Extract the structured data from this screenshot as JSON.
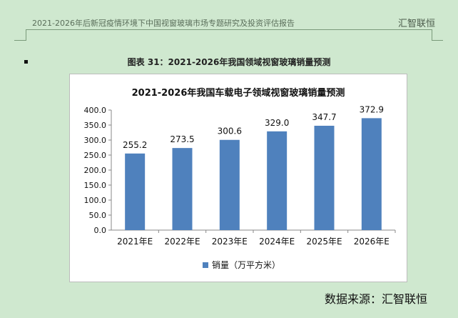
{
  "header": {
    "left_text": "2021-2026年后新冠疫情环境下中国视窗玻璃市场专题研究及投资评估报告",
    "right_text": "汇智联恒"
  },
  "figure_caption": "图表  31：2021-2026年我国领域视窗玻璃销量预测",
  "source_text": "数据来源：汇智联恒",
  "chart_data": {
    "type": "bar",
    "title": "2021-2026年我国车载电子领域视窗玻璃销量预测",
    "categories": [
      "2021年E",
      "2022年E",
      "2023年E",
      "2024年E",
      "2025年E",
      "2026年E"
    ],
    "series": [
      {
        "name": "销量（万平方米）",
        "values": [
          255.2,
          273.5,
          300.6,
          329.0,
          347.7,
          372.9
        ]
      }
    ],
    "value_labels": [
      "255.2",
      "273.5",
      "300.6",
      "329.0",
      "347.7",
      "372.9"
    ],
    "yticks": [
      "0.0",
      "50.0",
      "100.0",
      "150.0",
      "200.0",
      "250.0",
      "300.0",
      "350.0",
      "400.0"
    ],
    "ylim": [
      0,
      400
    ],
    "grid": false,
    "legend_position": "bottom",
    "bar_color": "#4f81bd"
  }
}
